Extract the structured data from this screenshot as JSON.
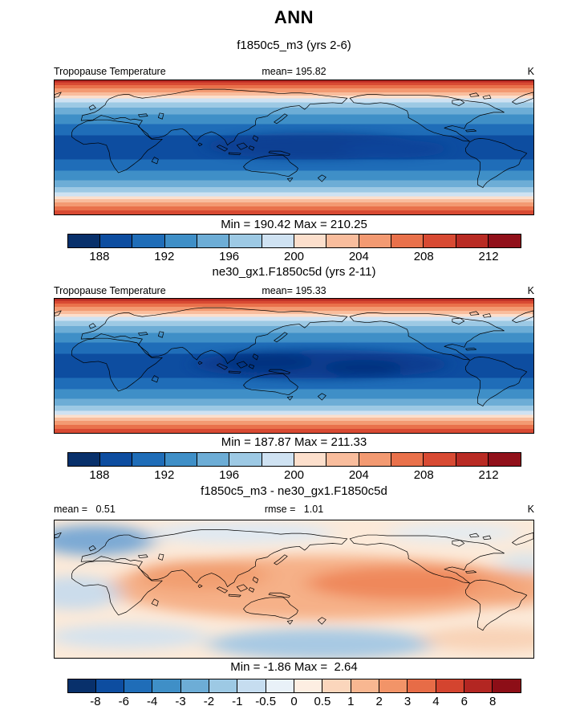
{
  "page": {
    "title": "ANN"
  },
  "panels": [
    {
      "subtitle": "f1850c5_m3 (yrs 2-6)",
      "field_label": "Tropopause Temperature",
      "mean_label": "mean= 195.82",
      "unit": "K",
      "minmax": "Min = 190.42 Max = 210.25",
      "colorbar": "temp"
    },
    {
      "subtitle": "ne30_gx1.F1850c5d (yrs 2-11)",
      "field_label": "Tropopause Temperature",
      "mean_label": "mean= 195.33",
      "unit": "K",
      "minmax": "Min = 187.87 Max = 211.33",
      "colorbar": "temp"
    },
    {
      "subtitle": "f1850c5_m3 - ne30_gx1.F1850c5d",
      "mean_label": "mean =   0.51",
      "rmse_label": "rmse =   1.01",
      "unit": "K",
      "minmax": "Min = -1.86 Max =  2.64",
      "colorbar": "diff"
    }
  ],
  "colorbars": {
    "temp": {
      "colors": [
        "#08306b",
        "#0d4da0",
        "#1f6db8",
        "#3f8fc7",
        "#6dadd6",
        "#9dc9e4",
        "#cfe2f2",
        "#fcdfcc",
        "#f9bd9d",
        "#f39a72",
        "#e9714b",
        "#d84a33",
        "#b92b24",
        "#91101a"
      ],
      "tick_labels": [
        "188",
        "192",
        "196",
        "200",
        "204",
        "208",
        "212"
      ],
      "tick_boundaries": [
        1,
        3,
        5,
        7,
        9,
        11,
        13
      ]
    },
    "diff": {
      "colors": [
        "#08306b",
        "#0d4da0",
        "#1f6db8",
        "#3f8fc7",
        "#6dadd6",
        "#9dc9e4",
        "#c6ddf0",
        "#e9f1f8",
        "#fdeee2",
        "#fbd6bc",
        "#f8b791",
        "#f29468",
        "#e76c47",
        "#d4442f",
        "#b32622",
        "#8d0e17"
      ],
      "tick_labels": [
        "-8",
        "-6",
        "-4",
        "-3",
        "-2",
        "-1",
        "-0.5",
        "0",
        "0.5",
        "1",
        "2",
        "3",
        "4",
        "6",
        "8"
      ],
      "tick_boundaries": [
        1,
        2,
        3,
        4,
        5,
        6,
        7,
        8,
        9,
        10,
        11,
        12,
        13,
        14,
        15
      ]
    }
  },
  "chart_data": [
    {
      "type": "heatmap",
      "panel": "top",
      "dataset": "f1850c5_m3 (yrs 2-6)",
      "variable": "Tropopause Temperature",
      "units": "K",
      "mean": 195.82,
      "min": 190.42,
      "max": 210.25,
      "colorbar_ticks": [
        188,
        192,
        196,
        200,
        204,
        208,
        212
      ],
      "n_color_segments": 14,
      "palette_ref": "colorbars.temp",
      "projection": "global equirectangular map with coastlines",
      "spatial_pattern": "warm (orange/red) zonal bands at high latitudes along top and bottom edges, grading through white/light blue to a coldest dark blue band centered on the tropics, darkest over the Indo-Pacific warm pool"
    },
    {
      "type": "heatmap",
      "panel": "middle",
      "dataset": "ne30_gx1.F1850c5d (yrs 2-11)",
      "variable": "Tropopause Temperature",
      "units": "K",
      "mean": 195.33,
      "min": 187.87,
      "max": 211.33,
      "colorbar_ticks": [
        188,
        192,
        196,
        200,
        204,
        208,
        212
      ],
      "n_color_segments": 14,
      "palette_ref": "colorbars.temp",
      "projection": "global equirectangular map with coastlines",
      "spatial_pattern": "same zonal structure as top panel with a slightly larger and darker cold blue core over the tropical Indo-Pacific"
    },
    {
      "type": "heatmap",
      "panel": "bottom",
      "dataset": "f1850c5_m3 - ne30_gx1.F1850c5d",
      "variable": "Tropopause Temperature difference",
      "units": "K",
      "mean": 0.51,
      "rmse": 1.01,
      "min": -1.86,
      "max": 2.64,
      "colorbar_ticks": [
        -8,
        -6,
        -4,
        -3,
        -2,
        -1,
        -0.5,
        0,
        0.5,
        1,
        2,
        3,
        4,
        6,
        8
      ],
      "n_color_segments": 16,
      "palette_ref": "colorbars.diff",
      "projection": "global equirectangular map with coastlines",
      "spatial_pattern": "mostly weak positive (pale to medium orange) differences across the tropics and subtropics, with light blue negative patches at the northwest, far left mid-latitudes, bottom-center and high southern latitudes"
    }
  ]
}
